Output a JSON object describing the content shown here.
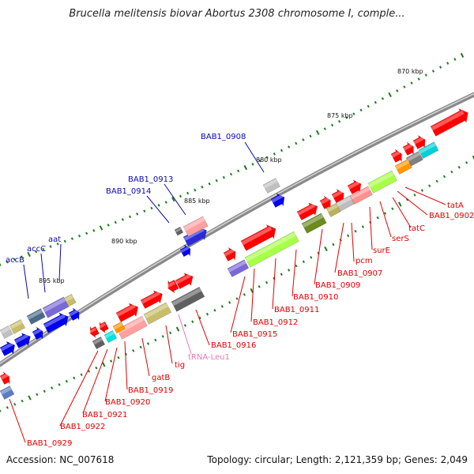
{
  "title": "Brucella melitensis biovar Abortus 2308 chromosome I, comple...",
  "footer": {
    "accession": "Accession: NC_007618",
    "summary": "Topology: circular; Length: 2,121,359 bp; Genes: 2,049"
  },
  "scale_labels": [
    "870 kbp",
    "875 kbp",
    "880 kbp",
    "885 kbp",
    "890 kbp",
    "895 kbp"
  ],
  "gene_labels": {
    "blue": [
      "BAB1_0908",
      "BAB1_0913",
      "BAB1_0914",
      "aat",
      "accC",
      "accB"
    ],
    "red": [
      "tatA",
      "BAB1_0902",
      "tatC",
      "serS",
      "surE",
      "BAB1_0907",
      "pcm",
      "BAB1_0909",
      "BAB1_0910",
      "BAB1_0911",
      "BAB1_0912",
      "BAB1_0915",
      "BAB1_0916",
      "tig",
      "gatB",
      "BAB1_0919",
      "BAB1_0920",
      "BAB1_0921",
      "BAB1_0922",
      "BAB1_0929"
    ],
    "pink": [
      "tRNA-Leu1"
    ]
  },
  "colors": {
    "blue_label": "#0a0aa8",
    "red_label": "#e00000",
    "pink_label": "#e879b3",
    "backbone": "#808080",
    "tick": "#1f7a1f"
  }
}
